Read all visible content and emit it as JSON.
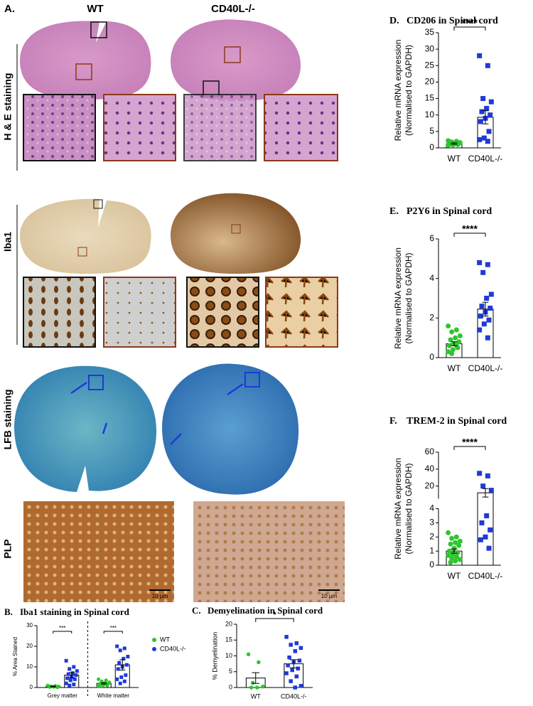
{
  "figure_a": {
    "label": "A.",
    "columns": [
      "WT",
      "CD40L-/-"
    ],
    "rows": [
      "H & E staining",
      "Iba1",
      "LFB staining",
      "PLP"
    ],
    "scale_bar": "10 µm"
  },
  "chart_data": [
    {
      "type": "bar",
      "panel_label": "B.",
      "title": "Iba1 staining in Spinal cord",
      "ylabel": "% Area Stained",
      "categories": [
        "Grey matter",
        "White matter"
      ],
      "series": [
        {
          "name": "WT",
          "color": "#2ec52e",
          "values": [
            0.5,
            2.0
          ],
          "errors": [
            0.2,
            0.3
          ],
          "points": [
            [
              1,
              0.8,
              0.6,
              0.5,
              0.3,
              0.2,
              0.1,
              0.4
            ],
            [
              4,
              3.5,
              3,
              2.5,
              2.2,
              2,
              1.8,
              1.5,
              1.2,
              1,
              0.8,
              0.5
            ]
          ]
        },
        {
          "name": "CD40L-/-",
          "color": "#1f3ad6",
          "values": [
            6,
            11
          ],
          "errors": [
            1.2,
            2.5
          ],
          "points": [
            [
              13,
              10,
              9,
              8,
              7,
              6.5,
              6,
              5,
              4.5,
              4,
              3.5,
              2,
              1.5,
              1
            ],
            [
              20,
              19,
              18,
              15,
              14,
              12,
              11,
              10,
              9,
              6,
              5,
              4,
              3,
              2
            ]
          ]
        }
      ],
      "ylim": [
        0,
        30
      ],
      "yticks": [
        0,
        10,
        20,
        30
      ],
      "significance": [
        "***",
        "***"
      ],
      "legend": "right"
    },
    {
      "type": "bar",
      "panel_label": "C.",
      "title": "Demyelination in Spinal cord",
      "ylabel": "% Demyelination",
      "categories": [
        "WT",
        "CD40L-/-"
      ],
      "colors": [
        "#2ec52e",
        "#1f3ad6"
      ],
      "values": [
        3.0,
        7.5
      ],
      "errors": [
        1.7,
        1.3
      ],
      "points": [
        [
          10.5,
          8,
          1.5,
          0.3,
          0,
          0
        ],
        [
          16,
          14,
          13.5,
          12.5,
          11.5,
          9.5,
          8.5,
          8,
          7,
          6,
          5.5,
          4.5,
          3.5,
          2,
          0.5,
          0
        ]
      ],
      "ylim": [
        0,
        20
      ],
      "yticks": [
        0,
        5,
        10,
        15,
        20
      ],
      "significance": "*"
    },
    {
      "type": "bar",
      "panel_label": "D.",
      "title": "CD206 in Spinal cord",
      "ylabel": [
        "Relative mRNA expression",
        "(Normalised to GAPDH)"
      ],
      "categories": [
        "WT",
        "CD40L-/-"
      ],
      "colors": [
        "#2ec52e",
        "#1f3ad6"
      ],
      "values": [
        1.3,
        9.3
      ],
      "errors": [
        0.2,
        2.0
      ],
      "points": [
        [
          2.2,
          2,
          1.8,
          1.6,
          1.5,
          1.4,
          1.3,
          1.2,
          1.1,
          1,
          0.9,
          0.8
        ],
        [
          28,
          25,
          15,
          14,
          12,
          11,
          10,
          9,
          8,
          5,
          3,
          2.5,
          2
        ]
      ],
      "ylim": [
        0,
        35
      ],
      "yticks": [
        0,
        5,
        10,
        15,
        20,
        25,
        30,
        35
      ],
      "significance": "****"
    },
    {
      "type": "bar",
      "panel_label": "E.",
      "title": "P2Y6 in Spinal cord",
      "ylabel": [
        "Relative mRNA expression",
        "(Normalised to GAPDH)"
      ],
      "categories": [
        "WT",
        "CD40L-/-"
      ],
      "colors": [
        "#2ec52e",
        "#1f3ad6"
      ],
      "values": [
        0.7,
        2.45
      ],
      "errors": [
        0.1,
        0.35
      ],
      "points": [
        [
          1.6,
          1.4,
          1.3,
          1.1,
          1.0,
          0.9,
          0.8,
          0.7,
          0.6,
          0.5,
          0.4,
          0.3,
          0.6,
          0.2
        ],
        [
          4.8,
          4.7,
          4.3,
          3.2,
          3.0,
          2.6,
          2.5,
          2.3,
          2.1,
          1.9,
          1.7,
          1.4,
          1.0
        ]
      ],
      "ylim": [
        0,
        6
      ],
      "yticks": [
        0,
        2,
        4,
        6
      ],
      "significance": "****"
    },
    {
      "type": "bar",
      "panel_label": "F.",
      "title": "TREM-2 in Spinal cord",
      "ylabel": [
        "Relative mRNA expression",
        "(Normalised to GAPDH)"
      ],
      "categories": [
        "WT",
        "CD40L-/-"
      ],
      "colors": [
        "#2ec52e",
        "#1f3ad6"
      ],
      "values": [
        1.0,
        12
      ],
      "errors": [
        0.15,
        5
      ],
      "points": [
        [
          2.3,
          2.0,
          1.9,
          1.7,
          1.6,
          1.5,
          1.4,
          1.2,
          1.0,
          0.9,
          0.8,
          0.7,
          0.6,
          0.5,
          0.4,
          0.3,
          0.2
        ],
        [
          35,
          32,
          20,
          15,
          3.5,
          3.0,
          2.5,
          2.0,
          1.8,
          1.2
        ]
      ],
      "y_segments": [
        {
          "ylim": [
            0,
            4
          ],
          "yticks": [
            0,
            1,
            2,
            3,
            4
          ]
        },
        {
          "ylim": [
            5,
            60
          ],
          "yticks": [
            20,
            40,
            60
          ]
        }
      ],
      "significance": "****"
    }
  ]
}
